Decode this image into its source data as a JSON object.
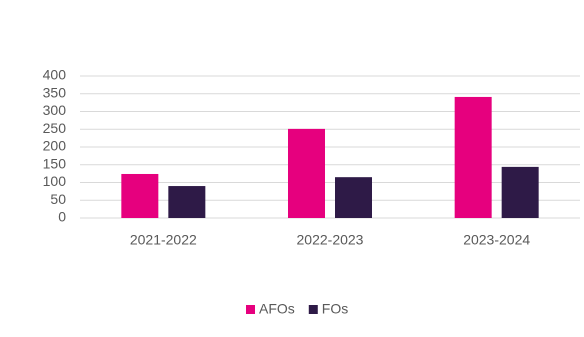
{
  "chart_data": {
    "type": "bar",
    "categories": [
      "2021-2022",
      "2022-2023",
      "2023-2024"
    ],
    "series": [
      {
        "name": "AFOs",
        "color": "#e6007e",
        "values": [
          124,
          251,
          341
        ]
      },
      {
        "name": "FOs",
        "color": "#2e1a47",
        "values": [
          90,
          115,
          144
        ]
      }
    ],
    "ylim": [
      0,
      400
    ],
    "yticks": [
      0,
      50,
      100,
      150,
      200,
      250,
      300,
      350,
      400
    ],
    "grid": true,
    "legend": "bottom"
  }
}
